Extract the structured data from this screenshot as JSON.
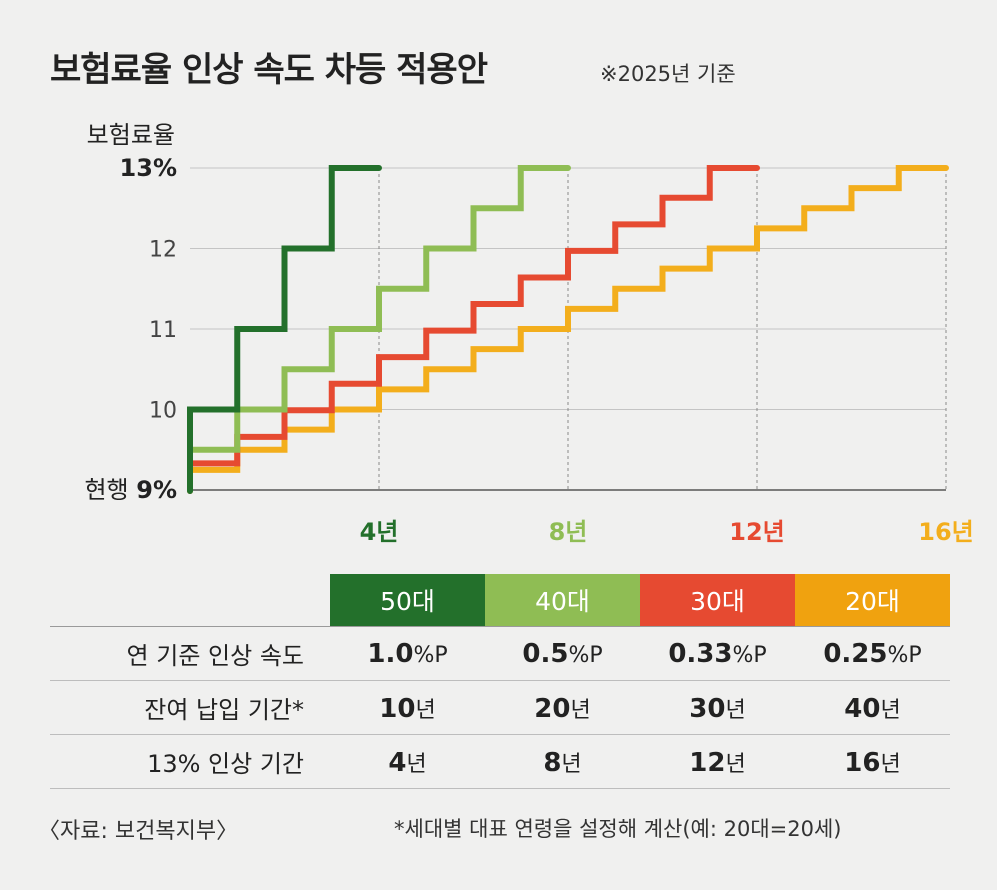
{
  "title": "보험료율 인상 속도 차등 적용안",
  "subtitle": "※2025년 기준",
  "chart_data": {
    "type": "line",
    "step": true,
    "ylabel": "보험료율",
    "ylim": [
      9,
      13
    ],
    "xlim": [
      0,
      16
    ],
    "y_ticks": [
      {
        "value": 13,
        "label": "13",
        "unit": "%",
        "bold": true
      },
      {
        "value": 12,
        "label": "12",
        "unit": "",
        "bold": false
      },
      {
        "value": 11,
        "label": "11",
        "unit": "",
        "bold": false
      },
      {
        "value": 10,
        "label": "10",
        "unit": "",
        "bold": false
      },
      {
        "value": 9,
        "label": "현행 9",
        "unit": "%",
        "bold": false
      }
    ],
    "x_ticks": [
      {
        "value": 4,
        "label": "4년",
        "color": "#23702b"
      },
      {
        "value": 8,
        "label": "8년",
        "color": "#8fbd54"
      },
      {
        "value": 12,
        "label": "12년",
        "color": "#e64a31"
      },
      {
        "value": 16,
        "label": "16년",
        "color": "#f3ae1c"
      }
    ],
    "grid": true,
    "series": [
      {
        "name": "50대",
        "color": "#23702b",
        "start": 9,
        "step": 1.0,
        "steps": 4,
        "end_year": 4
      },
      {
        "name": "40대",
        "color": "#8fbd54",
        "start": 9,
        "step": 0.5,
        "steps": 8,
        "end_year": 8
      },
      {
        "name": "30대",
        "color": "#e64a31",
        "start": 9,
        "step": 0.33,
        "steps": 12,
        "end_year": 12
      },
      {
        "name": "20대",
        "color": "#f3ae1c",
        "start": 9,
        "step": 0.25,
        "steps": 16,
        "end_year": 16
      }
    ]
  },
  "table": {
    "headers": [
      {
        "label": "50대",
        "color": "#23702b"
      },
      {
        "label": "40대",
        "color": "#8fbd54"
      },
      {
        "label": "30대",
        "color": "#e64a31"
      },
      {
        "label": "20대",
        "color": "#f0a20f"
      }
    ],
    "rows": [
      {
        "label": "연 기준 인상 속도",
        "cells": [
          {
            "v": "1.0",
            "u": "%P"
          },
          {
            "v": "0.5",
            "u": "%P"
          },
          {
            "v": "0.33",
            "u": "%P"
          },
          {
            "v": "0.25",
            "u": "%P"
          }
        ]
      },
      {
        "label": "잔여 납입 기간*",
        "cells": [
          {
            "v": "10",
            "u": "년"
          },
          {
            "v": "20",
            "u": "년"
          },
          {
            "v": "30",
            "u": "년"
          },
          {
            "v": "40",
            "u": "년"
          }
        ]
      },
      {
        "label": "13% 인상 기간",
        "cells": [
          {
            "v": "4",
            "u": "년"
          },
          {
            "v": "8",
            "u": "년"
          },
          {
            "v": "12",
            "u": "년"
          },
          {
            "v": "16",
            "u": "년"
          }
        ]
      }
    ]
  },
  "source": "〈자료: 보건복지부〉",
  "footnote": "*세대별 대표 연령을 설정해 계산(예: 20대=20세)"
}
